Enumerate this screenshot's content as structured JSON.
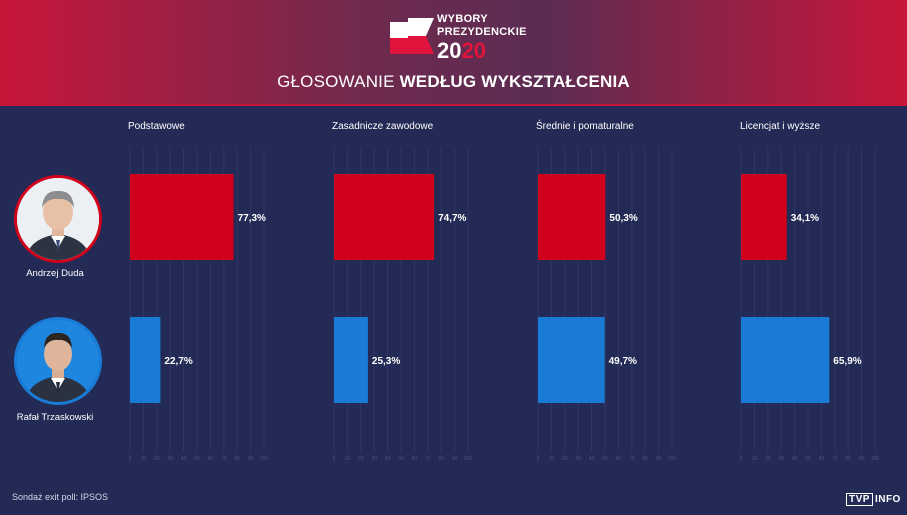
{
  "logo": {
    "line1": "WYBORY",
    "line2": "PREZYDENCKIE",
    "year_a": "20",
    "year_b": "20"
  },
  "title": {
    "normal": "GŁOSOWANIE ",
    "bold": "WEDŁUG WYKSZTAŁCENIA"
  },
  "candidates": [
    "Andrzej Duda",
    "Rafał Trzaskowski"
  ],
  "footer": "Sondaż exit poll: IPSOS",
  "brand": {
    "box": "TVP",
    "rest": "INFO"
  },
  "colors": {
    "duda": "#d0021b",
    "trzaskowski": "#1a7bd6",
    "background": "#232a55"
  },
  "chart_data": {
    "type": "bar",
    "orientation": "horizontal",
    "categories": [
      "Podstawowe",
      "Zasadnicze zawodowe",
      "Średnie i pomaturalne",
      "Licencjat i wyższe"
    ],
    "series": [
      {
        "name": "Andrzej Duda",
        "values": [
          77.3,
          74.7,
          50.3,
          34.1
        ],
        "labels": [
          "77,3%",
          "74,7%",
          "50,3%",
          "34,1%"
        ]
      },
      {
        "name": "Rafał Trzaskowski",
        "values": [
          22.7,
          25.3,
          49.7,
          65.9
        ],
        "labels": [
          "22,7%",
          "25,3%",
          "49,7%",
          "65,9%"
        ]
      }
    ],
    "xlim": [
      0,
      100
    ],
    "xticks": [
      "0",
      "10",
      "20",
      "30",
      "40",
      "50",
      "60",
      "70",
      "80",
      "90",
      "100"
    ],
    "grid": true
  }
}
